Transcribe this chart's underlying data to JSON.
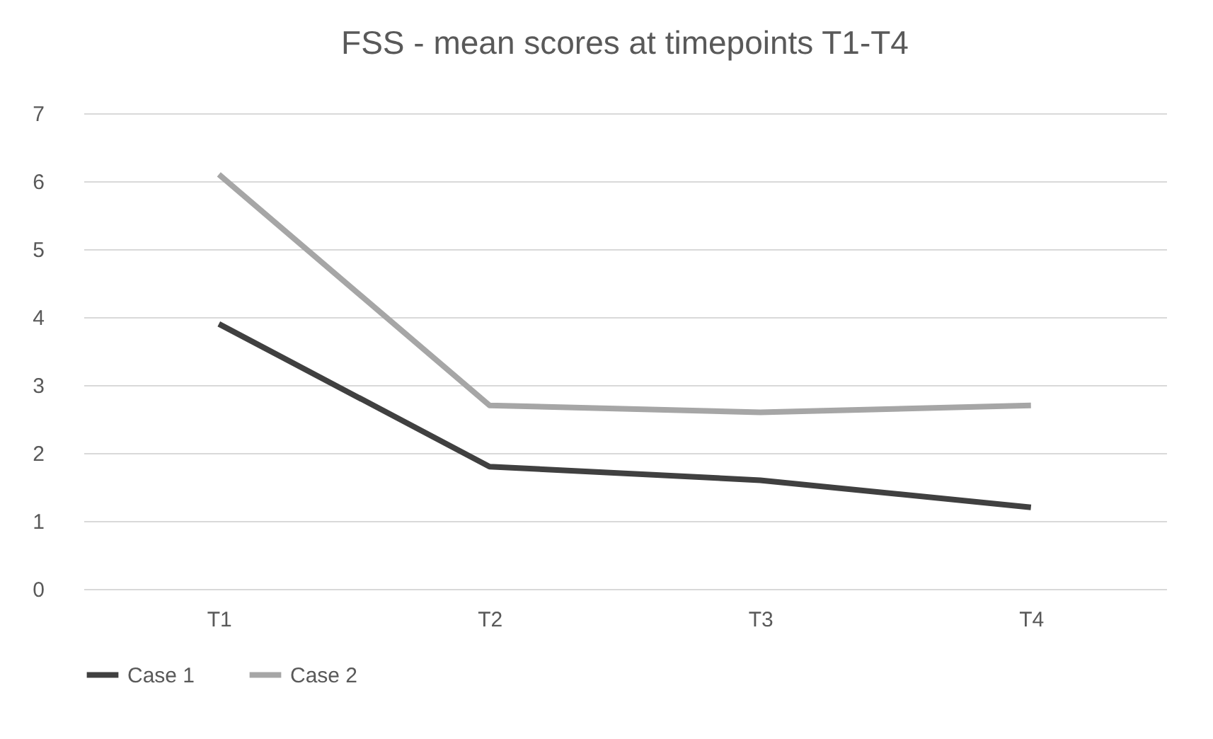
{
  "chart_data": {
    "type": "line",
    "title": "FSS - mean scores at timepoints T1-T4",
    "categories": [
      "T1",
      "T2",
      "T3",
      "T4"
    ],
    "series": [
      {
        "name": "Case 1",
        "color": "#404040",
        "values": [
          3.9,
          1.8,
          1.6,
          1.2
        ]
      },
      {
        "name": "Case 2",
        "color": "#a6a6a6",
        "values": [
          6.1,
          2.7,
          2.6,
          2.7
        ]
      }
    ],
    "ylim": [
      0,
      7
    ],
    "yticks": [
      0,
      1,
      2,
      3,
      4,
      5,
      6,
      7
    ],
    "grid": "y",
    "legend": "bottom",
    "marker": "none",
    "line_style": "solid"
  }
}
